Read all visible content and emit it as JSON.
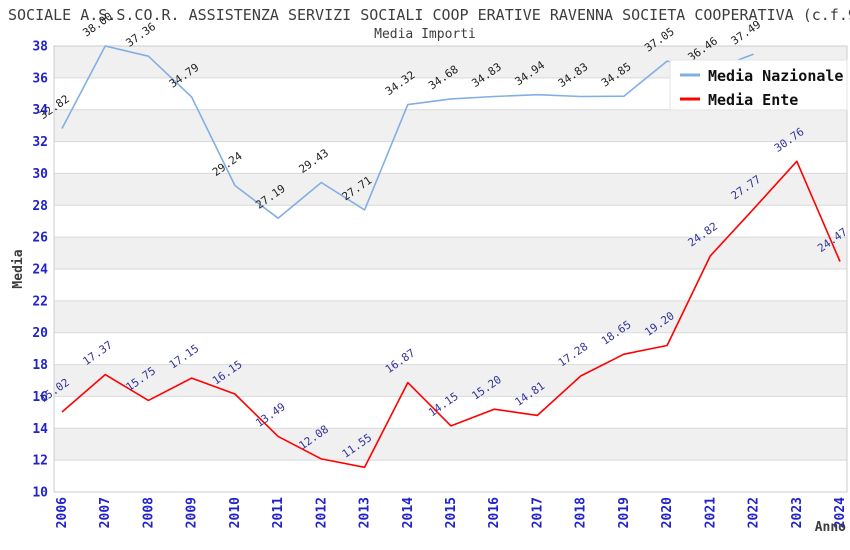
{
  "title": "SOCIALE A.S.S.CO.R. ASSISTENZA SERVIZI SOCIALI COOP ERATIVE RAVENNA SOCIETA COOPERATIVA (c.f.9",
  "subtitle": "Media Importi",
  "chart_data": {
    "type": "line",
    "x_label": "Anno",
    "y_label": "Media",
    "x": [
      "2006",
      "2007",
      "2008",
      "2009",
      "2010",
      "2011",
      "2012",
      "2013",
      "2014",
      "2015",
      "2016",
      "2017",
      "2018",
      "2019",
      "2020",
      "2021",
      "2022",
      "2023",
      "2024"
    ],
    "ylim": [
      10,
      38
    ],
    "ytick_step": 2,
    "grid": "alternating-horizontal-bands",
    "legend_position": "top-right",
    "legend": [
      "Media Nazionale",
      "Media Ente"
    ],
    "series": [
      {
        "name": "Media Nazionale",
        "color": "#82afe3",
        "label_color": "#1f1f1f",
        "values": [
          32.82,
          38.0,
          37.36,
          34.79,
          29.24,
          27.19,
          29.43,
          27.71,
          34.32,
          34.68,
          34.83,
          34.94,
          34.83,
          34.85,
          37.05,
          36.46,
          37.49,
          null,
          null
        ]
      },
      {
        "name": "Media Ente",
        "color": "#ff0000",
        "label_color": "#333399",
        "values": [
          15.02,
          17.37,
          15.75,
          17.15,
          16.15,
          13.49,
          12.08,
          11.55,
          16.87,
          14.15,
          15.2,
          14.81,
          17.28,
          18.65,
          19.2,
          24.82,
          27.77,
          30.76,
          24.47
        ]
      }
    ]
  },
  "colors": {
    "background": "#ffffff",
    "band_gray": "#f0f0f0",
    "gridline": "#d9d9d9",
    "plot_border": "#cccccc",
    "tick_label_blue": "#2222cc",
    "text_dark": "#3d3d3d",
    "legend_background": "#ffffff",
    "legend_border": "#e3e3e3",
    "legend_text": "#111111"
  }
}
